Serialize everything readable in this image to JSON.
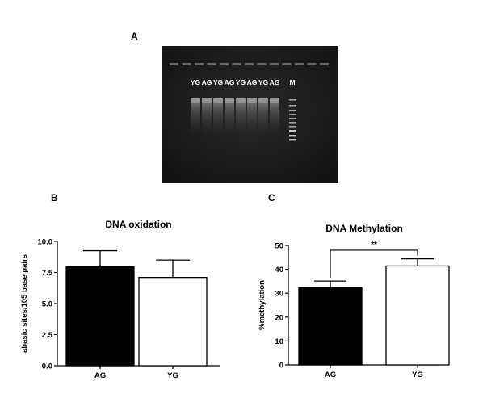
{
  "panels": {
    "a": "A",
    "b": "B",
    "c": "C"
  },
  "gel": {
    "lane_labels": [
      "YG",
      "AG",
      "YG",
      "AG",
      "YG",
      "AG",
      "YG",
      "AG",
      "M"
    ]
  },
  "chart_data": [
    {
      "type": "bar",
      "title": "DNA oxidation",
      "xlabel": "",
      "ylabel": "abasic sites/105 base pairs",
      "categories": [
        "AG",
        "YG"
      ],
      "values": [
        7.95,
        7.1
      ],
      "errors": [
        1.3,
        1.4
      ],
      "ylim": [
        0,
        10
      ],
      "yticks": [
        "0.0",
        "2.5",
        "5.0",
        "7.5",
        "10.0"
      ],
      "bar_colors": [
        "#000000",
        "#ffffff"
      ],
      "grid": false
    },
    {
      "type": "bar",
      "title": "DNA Methylation",
      "xlabel": "",
      "ylabel": "%methylation",
      "categories": [
        "AG",
        "YG"
      ],
      "values": [
        32.3,
        41.4
      ],
      "errors": [
        2.8,
        3.0
      ],
      "ylim": [
        0,
        50
      ],
      "yticks": [
        "0",
        "10",
        "20",
        "30",
        "40",
        "50"
      ],
      "bar_colors": [
        "#000000",
        "#ffffff"
      ],
      "significance": "**",
      "grid": false
    }
  ]
}
